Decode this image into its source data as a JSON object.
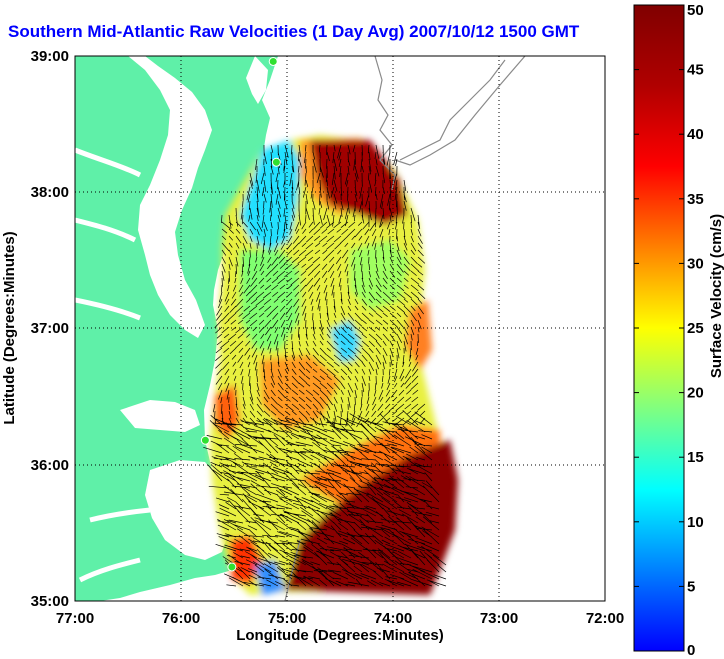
{
  "chart_data": {
    "type": "heatmap",
    "title": "Southern Mid-Atlantic Raw Velocities (1 Day Avg) 2007/10/12 1500 GMT",
    "xlabel": "Longitude (Degrees:Minutes)",
    "ylabel": "Latitude (Degrees:Minutes)",
    "x_ticks": [
      "77:00",
      "76:00",
      "75:00",
      "74:00",
      "73:00",
      "72:00"
    ],
    "y_ticks": [
      "39:00",
      "38:00",
      "37:00",
      "36:00",
      "35:00"
    ],
    "xlim": [
      -77,
      -72
    ],
    "ylim": [
      35,
      39
    ],
    "grid": true,
    "colorbar": {
      "label": "Surface Velocity (cm/s)",
      "min": 0,
      "max": 50,
      "ticks": [
        "0",
        "5",
        "10",
        "15",
        "20",
        "25",
        "30",
        "35",
        "40",
        "45",
        "50"
      ],
      "colormap": "jet"
    },
    "land_color": "#5ff0a8",
    "vector_color": "#000000",
    "stations": [
      {
        "lon": -75.13,
        "lat": 38.96
      },
      {
        "lon": -75.1,
        "lat": 38.22
      },
      {
        "lon": -75.77,
        "lat": 36.18
      },
      {
        "lon": -75.52,
        "lat": 35.25
      }
    ]
  }
}
